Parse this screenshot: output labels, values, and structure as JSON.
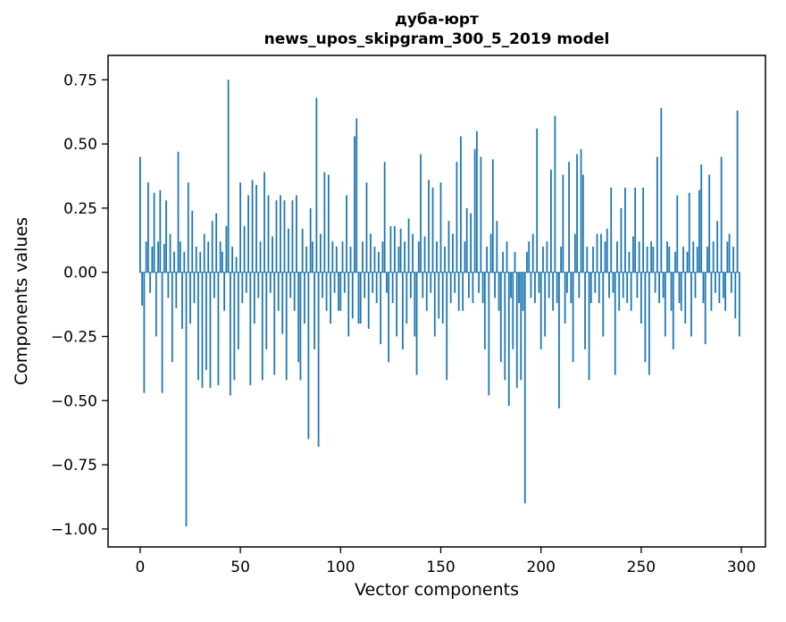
{
  "figure": {
    "title_line1": "дуба-юрт",
    "title_line2": "news_upos_skipgram_300_5_2019 model",
    "xlabel": "Vector components",
    "ylabel": "Components values"
  },
  "chart_data": {
    "type": "bar",
    "title": "дуба-юрт\nnews_upos_skipgram_300_5_2019 model",
    "xlabel": "Vector components",
    "ylabel": "Components values",
    "bar_color": "#1f77b4",
    "grid": false,
    "legend": "none",
    "n_components": 300,
    "xlim": [
      -16,
      312
    ],
    "ylim": [
      -1.07,
      0.845
    ],
    "x_ticks": [
      0,
      50,
      100,
      150,
      200,
      250,
      300
    ],
    "y_ticks": [
      0.75,
      0.5,
      0.25,
      0.0,
      -0.25,
      -0.5,
      -0.75,
      -1.0
    ],
    "values": [
      0.45,
      -0.13,
      -0.47,
      0.12,
      0.35,
      -0.08,
      0.1,
      0.31,
      -0.25,
      0.12,
      0.32,
      -0.47,
      0.11,
      0.28,
      -0.1,
      0.15,
      -0.35,
      0.08,
      -0.14,
      0.47,
      0.12,
      -0.22,
      0.08,
      -0.99,
      0.35,
      -0.2,
      0.24,
      -0.12,
      0.1,
      -0.42,
      0.08,
      -0.45,
      0.15,
      -0.38,
      0.12,
      -0.45,
      0.2,
      -0.1,
      0.23,
      -0.44,
      0.12,
      0.08,
      -0.15,
      0.18,
      0.75,
      -0.48,
      0.1,
      -0.42,
      0.06,
      -0.3,
      0.35,
      -0.12,
      0.18,
      -0.08,
      0.3,
      -0.44,
      0.36,
      -0.2,
      0.34,
      -0.1,
      0.12,
      -0.42,
      0.39,
      -0.3,
      0.3,
      -0.08,
      0.14,
      -0.4,
      0.28,
      -0.15,
      0.3,
      -0.24,
      0.28,
      -0.42,
      0.17,
      -0.1,
      0.28,
      -0.15,
      0.3,
      -0.35,
      -0.42,
      0.17,
      -0.2,
      0.1,
      -0.65,
      0.25,
      0.12,
      -0.3,
      0.68,
      -0.68,
      0.15,
      -0.1,
      0.39,
      -0.15,
      0.38,
      -0.2,
      0.12,
      -0.08,
      0.1,
      -0.15,
      -0.15,
      0.12,
      -0.08,
      0.3,
      -0.25,
      0.1,
      -0.18,
      0.53,
      0.6,
      -0.2,
      -0.2,
      0.12,
      -0.1,
      0.35,
      -0.22,
      0.15,
      -0.08,
      0.1,
      -0.12,
      0.08,
      -0.28,
      0.12,
      0.43,
      -0.08,
      -0.35,
      0.18,
      -0.12,
      0.18,
      -0.25,
      0.1,
      0.17,
      -0.3,
      0.12,
      -0.2,
      0.21,
      -0.1,
      0.15,
      -0.25,
      -0.4,
      0.12,
      0.46,
      -0.1,
      0.14,
      -0.15,
      0.36,
      -0.08,
      0.33,
      -0.25,
      0.12,
      -0.18,
      0.35,
      -0.2,
      0.1,
      -0.42,
      0.2,
      -0.12,
      0.15,
      -0.08,
      0.43,
      -0.15,
      0.53,
      -0.15,
      0.12,
      0.25,
      -0.1,
      0.23,
      -0.12,
      0.48,
      0.55,
      -0.08,
      0.45,
      -0.12,
      -0.3,
      0.1,
      -0.48,
      0.15,
      0.44,
      -0.1,
      0.2,
      -0.15,
      -0.35,
      0.08,
      -0.42,
      0.12,
      -0.52,
      -0.1,
      -0.3,
      0.08,
      -0.45,
      -0.12,
      -0.42,
      -0.15,
      -0.9,
      0.08,
      0.12,
      -0.1,
      0.15,
      -0.12,
      0.56,
      -0.08,
      -0.3,
      0.1,
      -0.25,
      0.12,
      -0.1,
      0.4,
      -0.15,
      0.61,
      -0.12,
      -0.53,
      0.1,
      0.38,
      -0.2,
      -0.08,
      0.43,
      -0.12,
      -0.35,
      0.15,
      0.46,
      -0.1,
      0.48,
      0.38,
      -0.3,
      0.1,
      -0.42,
      -0.12,
      0.1,
      -0.08,
      0.15,
      -0.12,
      0.15,
      -0.25,
      0.12,
      0.17,
      -0.1,
      0.33,
      -0.08,
      -0.4,
      0.12,
      -0.15,
      0.25,
      -0.1,
      0.33,
      -0.12,
      0.08,
      -0.15,
      0.14,
      0.33,
      -0.1,
      0.12,
      -0.2,
      0.33,
      -0.35,
      0.1,
      -0.4,
      0.12,
      0.1,
      -0.08,
      0.45,
      -0.12,
      0.64,
      -0.1,
      -0.25,
      0.12,
      0.1,
      -0.15,
      -0.3,
      0.08,
      0.3,
      -0.12,
      -0.15,
      0.1,
      -0.2,
      0.08,
      0.31,
      -0.25,
      0.12,
      -0.1,
      0.1,
      0.32,
      0.42,
      -0.12,
      -0.28,
      0.1,
      0.38,
      -0.15,
      0.12,
      -0.08,
      0.2,
      -0.12,
      0.45,
      -0.1,
      -0.15,
      0.12,
      0.15,
      -0.08,
      0.1,
      -0.18,
      0.63,
      -0.25
    ]
  }
}
